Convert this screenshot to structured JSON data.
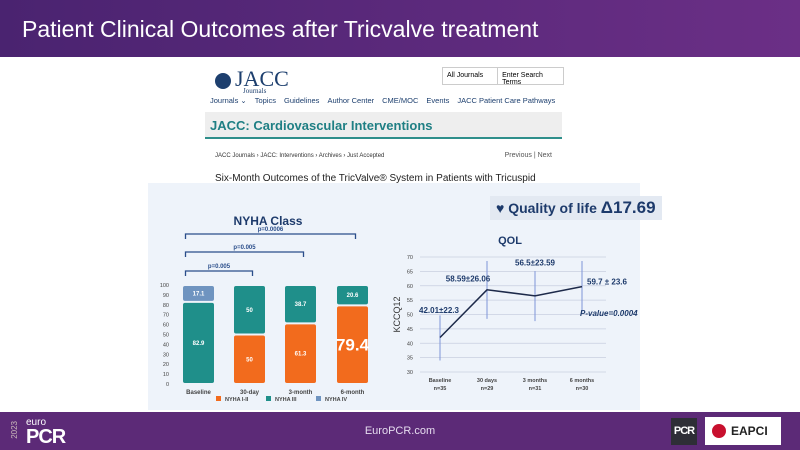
{
  "header": {
    "title": "Patient Clinical Outcomes after Tricvalve treatment"
  },
  "journal": {
    "logo": "JACC",
    "logo_sub": "Journals",
    "search_scope": "All Journals",
    "search_placeholder": "Enter Search Terms",
    "nav": [
      "Journals ⌄",
      "Topics",
      "Guidelines",
      "Author Center",
      "CME/MOC",
      "Events",
      "JACC Patient Care Pathways"
    ],
    "journal_title": "JACC: Cardiovascular Interventions",
    "breadcrumb": "JACC Journals › JACC: Interventions › Archives › Just Accepted",
    "prev": "Previous",
    "next": "Next",
    "article_title": "Six-Month Outcomes of the TricValve® System in Patients with Tricuspid Regurgitation: TRICUS EURO Study"
  },
  "badge": {
    "label": "Quality of life",
    "delta": "Δ17.69"
  },
  "chart_data": [
    {
      "type": "bar",
      "title": "NYHA Class",
      "categories": [
        "Baseline",
        "30-day",
        "3-month",
        "6-month"
      ],
      "ylim": [
        0,
        100
      ],
      "yticks": [
        0,
        10,
        20,
        30,
        40,
        50,
        60,
        70,
        80,
        90,
        100
      ],
      "series": [
        {
          "name": "NYHA I-II",
          "color": "#f26b1d",
          "values": [
            0,
            50,
            61.3,
            79.4
          ]
        },
        {
          "name": "NYHA III",
          "color": "#1f8f8a",
          "values": [
            82.9,
            50,
            38.7,
            20.6
          ]
        },
        {
          "name": "NYHA IV",
          "color": "#6f94c0",
          "values": [
            17.1,
            0,
            0,
            0
          ]
        }
      ],
      "labels": [
        [
          "",
          "50",
          "61.3",
          "79.4"
        ],
        [
          "82.9",
          "50",
          "38.7",
          "20.6"
        ],
        [
          "17.1",
          "",
          "",
          ""
        ]
      ],
      "brackets": [
        {
          "from": 0,
          "to": 1,
          "label": "p=0.005"
        },
        {
          "from": 0,
          "to": 2,
          "label": "p=0.005"
        },
        {
          "from": 0,
          "to": 3,
          "label": "p=0.0006"
        }
      ]
    },
    {
      "type": "line",
      "title": "QOL",
      "ylabel": "KCCQ12",
      "ylim": [
        30,
        70
      ],
      "yticks": [
        30,
        35,
        40,
        45,
        50,
        55,
        60,
        65,
        70
      ],
      "categories": [
        "Baseline",
        "30 days",
        "3 months",
        "6 months"
      ],
      "n": [
        "n=35",
        "n=29",
        "n=31",
        "n=30"
      ],
      "values": [
        42.01,
        58.59,
        56.5,
        59.7
      ],
      "err_low": [
        34,
        48.5,
        47.7,
        50.7
      ],
      "err_high": [
        49.7,
        68.6,
        65.1,
        68.6
      ],
      "labels": [
        "42.01±22.3",
        "58.59±26.06",
        "56.5±23.59",
        "59.7 ± 23.6"
      ],
      "annotation": "P-value=0.0004"
    }
  ],
  "footer": {
    "site": "EuroPCR.com",
    "brand_year": "2023",
    "brand_top": "euro",
    "brand": "PCR",
    "logo2": "PCR",
    "logo3": "EAPCI"
  }
}
